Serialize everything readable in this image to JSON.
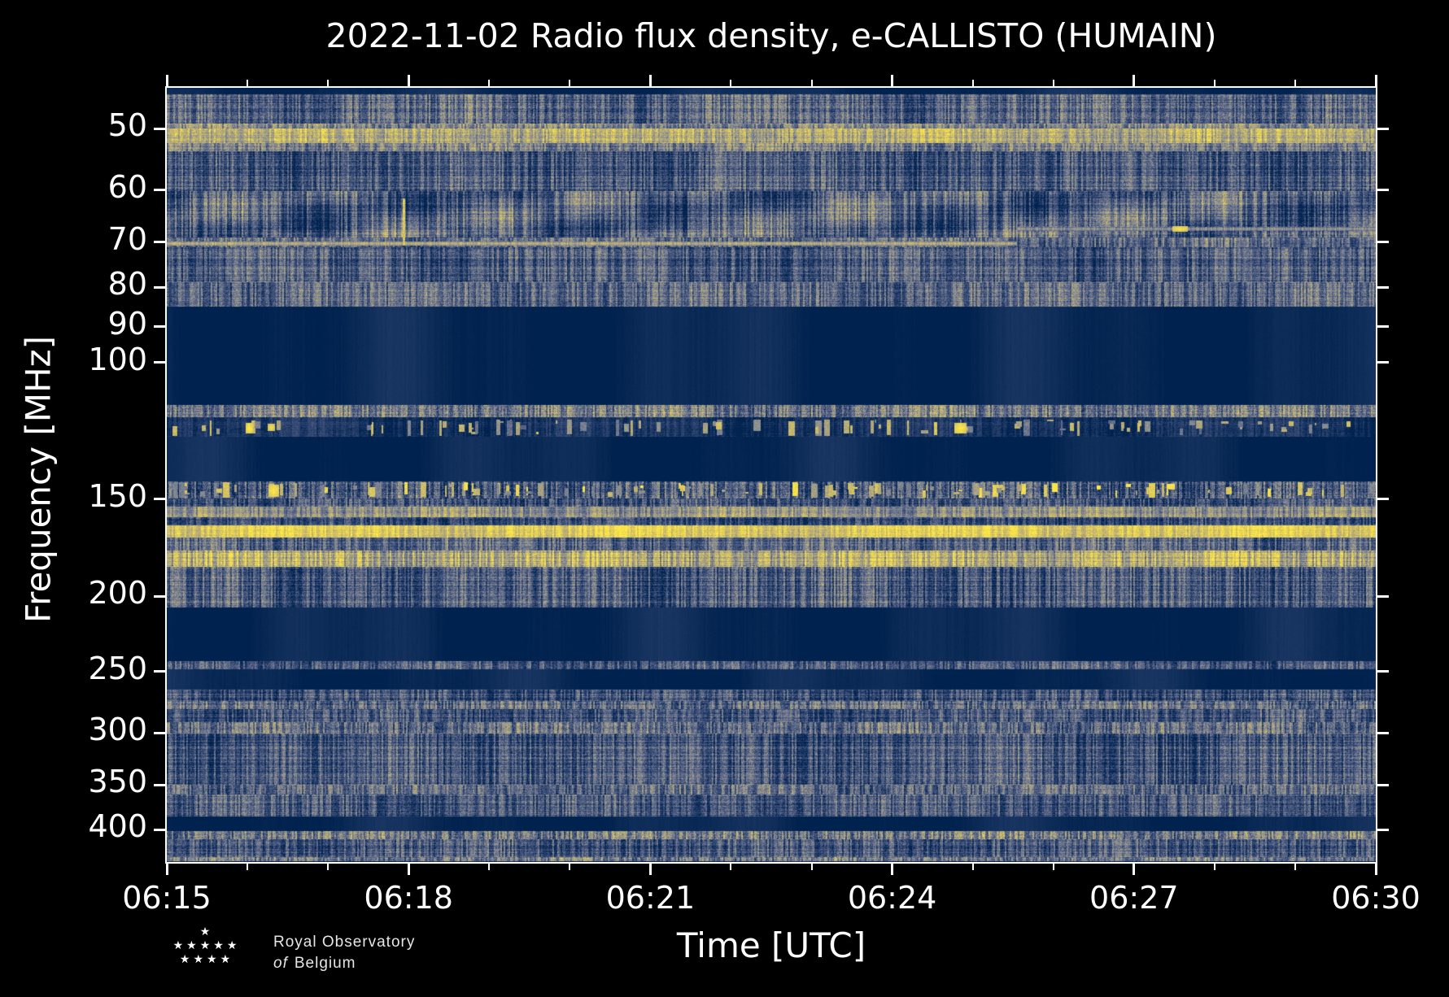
{
  "figure": {
    "title": "2022-11-02 Radio flux density, e-CALLISTO (HUMAIN)",
    "background_color": "#000000",
    "text_color": "#ffffff"
  },
  "branding": {
    "line1": "Royal Observatory",
    "line2_italic": "of",
    "line2_rest": "Belgium",
    "stars_rows": [
      1,
      5,
      4
    ],
    "star_glyph": "★"
  },
  "chart_data": {
    "type": "heatmap",
    "subtype": "radio-spectrogram",
    "title": "2022-11-02 Radio flux density, e-CALLISTO (HUMAIN)",
    "xlabel": "Time [UTC]",
    "ylabel": "Frequency [MHz]",
    "grid": false,
    "legend": "none",
    "x_axis": {
      "start_label": "06:15",
      "end_label": "06:30",
      "total_minutes": 15,
      "major_tick_minutes": [
        0,
        3,
        6,
        9,
        12,
        15
      ],
      "major_tick_labels": [
        "06:15",
        "06:18",
        "06:21",
        "06:24",
        "06:27",
        "06:30"
      ],
      "minor_tick_every_min": 1
    },
    "y_axis": {
      "scale": "log",
      "inverted": true,
      "min_mhz": 44.3,
      "max_mhz": 440,
      "major_ticks_mhz": [
        50,
        60,
        70,
        80,
        90,
        100,
        150,
        200,
        250,
        300,
        350,
        400
      ]
    },
    "colormap": {
      "name": "cividis-like",
      "stops": [
        [
          0.0,
          "#00224e"
        ],
        [
          0.2,
          "#2f4571"
        ],
        [
          0.38,
          "#5d6787"
        ],
        [
          0.52,
          "#848a95"
        ],
        [
          0.68,
          "#b0a67c"
        ],
        [
          0.84,
          "#d9c65f"
        ],
        [
          1.0,
          "#ffea46"
        ]
      ]
    },
    "bands": [
      {
        "f0": 44.3,
        "f1": 45.2,
        "base": 0.03,
        "cv": 0.01,
        "rv": 0.0,
        "pv": 0.01,
        "note": "solid top edge"
      },
      {
        "f0": 45.2,
        "f1": 49.3,
        "base": 0.36,
        "cv": 0.2,
        "rv": 0.1,
        "pv": 0.16,
        "note": "noise 45-49 MHz"
      },
      {
        "f0": 49.3,
        "f1": 50.0,
        "base": 0.52,
        "cv": 0.2,
        "rv": 0.08,
        "pv": 0.14,
        "note": "bright edge"
      },
      {
        "f0": 50.0,
        "f1": 52.2,
        "base": 0.7,
        "cv": 0.16,
        "rv": 0.08,
        "pv": 0.14,
        "note": "bright yellow 50-52 MHz RFI band"
      },
      {
        "f0": 52.2,
        "f1": 53.5,
        "base": 0.48,
        "cv": 0.2,
        "rv": 0.08,
        "pv": 0.14,
        "note": "fade below bright band"
      },
      {
        "f0": 53.5,
        "f1": 60.2,
        "base": 0.3,
        "cv": 0.2,
        "rv": 0.12,
        "pv": 0.15,
        "note": "noise 54-60 MHz"
      },
      {
        "f0": 60.2,
        "f1": 69.0,
        "base": 0.33,
        "cv": 0.22,
        "rv": 0.1,
        "pv": 0.15,
        "patchy": true,
        "note": "wavy interference 60-69 MHz"
      },
      {
        "f0": 69.0,
        "f1": 71.0,
        "base": 0.36,
        "cv": 0.2,
        "rv": 0.06,
        "pv": 0.14,
        "note": "70 MHz line region"
      },
      {
        "f0": 71.0,
        "f1": 78.8,
        "base": 0.31,
        "cv": 0.2,
        "rv": 0.12,
        "pv": 0.15,
        "note": "noise 71-79 MHz"
      },
      {
        "f0": 78.8,
        "f1": 84.7,
        "base": 0.38,
        "cv": 0.2,
        "rv": 0.1,
        "pv": 0.15,
        "note": "denser gray 79-85 MHz"
      },
      {
        "f0": 84.7,
        "f1": 113.5,
        "base": 0.025,
        "cv": 0.01,
        "rv": 0.0,
        "pv": 0.01,
        "note": "blanked FM band 85-113 MHz"
      },
      {
        "f0": 113.5,
        "f1": 117.7,
        "base": 0.46,
        "cv": 0.22,
        "rv": 0.06,
        "pv": 0.18,
        "note": "gray speckle line ~115 MHz"
      },
      {
        "f0": 117.7,
        "f1": 124.7,
        "base": 0.1,
        "cv": 0.08,
        "rv": 0.03,
        "pv": 0.08,
        "note": "aviation band, intermittent bursts"
      },
      {
        "f0": 124.7,
        "f1": 142.3,
        "base": 0.025,
        "cv": 0.01,
        "rv": 0.0,
        "pv": 0.01,
        "note": "blanked 125-142 MHz"
      },
      {
        "f0": 142.3,
        "f1": 149.7,
        "base": 0.3,
        "cv": 0.24,
        "rv": 0.08,
        "pv": 0.18,
        "note": "noise with bursts 143-150 MHz"
      },
      {
        "f0": 149.7,
        "f1": 153.4,
        "base": 0.26,
        "cv": 0.2,
        "rv": 0.08,
        "pv": 0.15,
        "note": "noise ~151 MHz"
      },
      {
        "f0": 153.4,
        "f1": 158.3,
        "base": 0.58,
        "cv": 0.18,
        "rv": 0.06,
        "pv": 0.12,
        "note": "tan line ~155 MHz"
      },
      {
        "f0": 158.3,
        "f1": 162.1,
        "base": 0.24,
        "cv": 0.18,
        "rv": 0.08,
        "pv": 0.14,
        "note": "gap"
      },
      {
        "f0": 162.1,
        "f1": 168.1,
        "base": 0.86,
        "cv": 0.12,
        "rv": 0.04,
        "pv": 0.1,
        "note": "brightest yellow band ~165 MHz"
      },
      {
        "f0": 168.1,
        "f1": 174.8,
        "base": 0.36,
        "cv": 0.2,
        "rv": 0.08,
        "pv": 0.14,
        "note": "gray noise"
      },
      {
        "f0": 174.8,
        "f1": 183.4,
        "base": 0.68,
        "cv": 0.22,
        "rv": 0.1,
        "pv": 0.14,
        "note": "yellow speckled band ~176-182 MHz"
      },
      {
        "f0": 183.4,
        "f1": 206.9,
        "base": 0.3,
        "cv": 0.22,
        "rv": 0.1,
        "pv": 0.15,
        "note": "noise 184-207 MHz"
      },
      {
        "f0": 206.9,
        "f1": 242.5,
        "base": 0.025,
        "cv": 0.01,
        "rv": 0.0,
        "pv": 0.01,
        "note": "blanked 207-242 MHz"
      },
      {
        "f0": 242.5,
        "f1": 248.5,
        "base": 0.3,
        "cv": 0.2,
        "rv": 0.05,
        "pv": 0.15,
        "note": "gray line ~246 MHz"
      },
      {
        "f0": 248.5,
        "f1": 263.9,
        "base": 0.025,
        "cv": 0.01,
        "rv": 0.0,
        "pv": 0.01,
        "note": "blanked 249-264 MHz"
      },
      {
        "f0": 263.9,
        "f1": 272.9,
        "base": 0.26,
        "cv": 0.2,
        "rv": 0.1,
        "pv": 0.14,
        "note": "noise 264-273 MHz"
      },
      {
        "f0": 272.9,
        "f1": 279.6,
        "base": 0.4,
        "cv": 0.22,
        "rv": 0.08,
        "pv": 0.16,
        "note": "tan speckles ~277 MHz"
      },
      {
        "f0": 279.6,
        "f1": 290.7,
        "base": 0.27,
        "cv": 0.2,
        "rv": 0.1,
        "pv": 0.14,
        "note": "noise"
      },
      {
        "f0": 290.7,
        "f1": 300.6,
        "base": 0.42,
        "cv": 0.22,
        "rv": 0.08,
        "pv": 0.16,
        "note": "brighter line ~300 MHz"
      },
      {
        "f0": 300.6,
        "f1": 349.9,
        "base": 0.28,
        "cv": 0.2,
        "rv": 0.12,
        "pv": 0.15,
        "note": "noise 300-350 MHz"
      },
      {
        "f0": 349.9,
        "f1": 360.0,
        "base": 0.36,
        "cv": 0.22,
        "rv": 0.08,
        "pv": 0.15,
        "note": "tan-ish ~355 MHz"
      },
      {
        "f0": 360.0,
        "f1": 384.5,
        "base": 0.29,
        "cv": 0.2,
        "rv": 0.12,
        "pv": 0.15,
        "note": "noise 360-385 MHz"
      },
      {
        "f0": 384.5,
        "f1": 401.5,
        "base": 0.025,
        "cv": 0.01,
        "rv": 0.0,
        "pv": 0.01,
        "note": "blanked 385-400 MHz"
      },
      {
        "f0": 401.5,
        "f1": 411.3,
        "base": 0.44,
        "cv": 0.24,
        "rv": 0.06,
        "pv": 0.18,
        "note": "tan line ~408 MHz"
      },
      {
        "f0": 411.3,
        "f1": 433.7,
        "base": 0.28,
        "cv": 0.2,
        "rv": 0.1,
        "pv": 0.15,
        "note": "noise 411-434 MHz"
      },
      {
        "f0": 433.7,
        "f1": 438.5,
        "base": 0.46,
        "cv": 0.22,
        "rv": 0.05,
        "pv": 0.15,
        "note": "bottom tan edge"
      },
      {
        "f0": 438.5,
        "f1": 440.0,
        "base": 0.04,
        "cv": 0.02,
        "rv": 0.0,
        "pv": 0.02,
        "note": "bottom edge"
      }
    ],
    "features": {
      "lines": [
        {
          "f": 70.3,
          "x0": 0.0,
          "x1": 0.703,
          "level": 0.74,
          "half": 2,
          "note": "70 MHz carrier until ~06:25.5"
        },
        {
          "f": 67.3,
          "x0": 0.703,
          "x1": 1.0,
          "level": 0.6,
          "half": 2,
          "note": "shifted carrier after ~06:25.5"
        }
      ],
      "events": [
        {
          "x": 0.838,
          "f": 67.3,
          "w": 18,
          "h": 6,
          "level": 0.97,
          "note": "bright spot on shifted carrier"
        },
        {
          "x": 0.068,
          "f": 121.5,
          "w": 9,
          "h": 13,
          "level": 1.0,
          "note": "aviation burst 06:16"
        },
        {
          "x": 0.086,
          "f": 121.0,
          "w": 8,
          "h": 9,
          "level": 0.95,
          "note": "aviation burst"
        },
        {
          "x": 0.656,
          "f": 121.5,
          "w": 14,
          "h": 13,
          "level": 1.0,
          "note": "aviation burst 06:24.8"
        },
        {
          "x": 0.088,
          "f": 146.0,
          "w": 12,
          "h": 14,
          "level": 1.0,
          "note": "bright burst ~146 MHz 06:16.3"
        }
      ],
      "vertical_streak": {
        "x": 0.196,
        "f0": 61.5,
        "f1": 70.5,
        "w": 3,
        "level": 0.85,
        "note": "short-lived broadband spike ~06:18"
      },
      "burst_groups": [
        {
          "f0": 118.5,
          "f1": 124.3,
          "count": 90,
          "wmin": 2,
          "wmax": 9,
          "lmin": 0.35,
          "lmax": 0.85,
          "seed": 421
        },
        {
          "f0": 142.8,
          "f1": 149.3,
          "count": 120,
          "wmin": 2,
          "wmax": 8,
          "lmin": 0.45,
          "lmax": 1.0,
          "seed": 977
        }
      ]
    }
  }
}
